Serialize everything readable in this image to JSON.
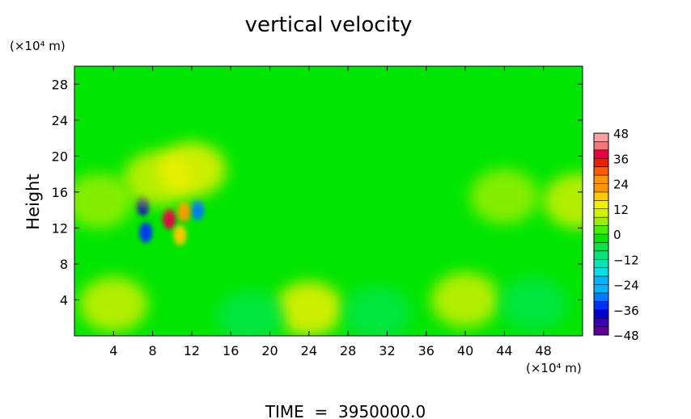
{
  "chart_data": {
    "type": "heatmap",
    "title": "vertical velocity",
    "ylabel": "Height",
    "y_unit_label": "(×10⁴ m)",
    "x_unit_label": "(×10⁴ m)",
    "footer": "TIME  =  3950000.0",
    "xlim": [
      0,
      52
    ],
    "ylim": [
      0,
      30
    ],
    "x_ticks": [
      "4",
      "8",
      "12",
      "16",
      "20",
      "24",
      "28",
      "32",
      "36",
      "40",
      "44",
      "48"
    ],
    "y_ticks": [
      "4",
      "8",
      "12",
      "16",
      "20",
      "24",
      "28"
    ],
    "colorbar": {
      "min": -48,
      "max": 48,
      "step": 4,
      "tick_labels": [
        "48",
        "36",
        "24",
        "12",
        "0",
        "−12",
        "−24",
        "−36",
        "−48"
      ]
    },
    "background_value": 0,
    "features": [
      {
        "x": 7.0,
        "y": 14.5,
        "value": -36
      },
      {
        "x": 7.3,
        "y": 11.5,
        "value": -32
      },
      {
        "x": 12.6,
        "y": 14.0,
        "value": -30
      },
      {
        "x": 9.7,
        "y": 13.0,
        "value": 36
      },
      {
        "x": 11.2,
        "y": 13.8,
        "value": 24
      },
      {
        "x": 10.8,
        "y": 11.2,
        "value": 18
      },
      {
        "x": 8.5,
        "y": 17.5,
        "value": 12
      },
      {
        "x": 12.0,
        "y": 18.5,
        "value": 14
      },
      {
        "x": 4.0,
        "y": 3.5,
        "value": 10
      },
      {
        "x": 24.0,
        "y": 3.0,
        "value": 14
      },
      {
        "x": 40.0,
        "y": 4.0,
        "value": 10
      },
      {
        "x": 18.0,
        "y": 2.0,
        "value": -8
      },
      {
        "x": 31.0,
        "y": 2.5,
        "value": -8
      },
      {
        "x": 47.0,
        "y": 3.5,
        "value": -6
      },
      {
        "x": 44.0,
        "y": 15.5,
        "value": 8
      },
      {
        "x": 51.5,
        "y": 15.0,
        "value": 12
      },
      {
        "x": 2.5,
        "y": 15.0,
        "value": 8
      }
    ],
    "colormap": [
      "#5a0098",
      "#3a00b4",
      "#0000c8",
      "#0030ff",
      "#0078ff",
      "#00b4ff",
      "#00e0e6",
      "#00e6b4",
      "#00e678",
      "#00e646",
      "#00e600",
      "#46f000",
      "#9bf000",
      "#d2f000",
      "#f0f000",
      "#ffc800",
      "#ff9600",
      "#ff5a00",
      "#f01e00",
      "#e60046",
      "#f07878",
      "#ffa0a0"
    ]
  }
}
